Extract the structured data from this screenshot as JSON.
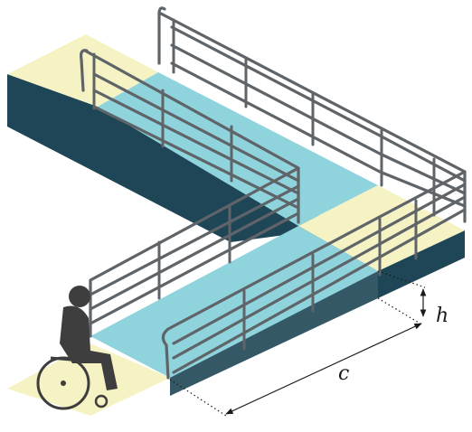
{
  "labels": {
    "c": "c",
    "h": "h"
  },
  "colors": {
    "ramp": "#8fd3dc",
    "landing": "#f5f3c4",
    "side": "#1f4657",
    "rail": "#5f6468",
    "person": "#3e3e3e"
  },
  "icons": [
    "wheelchair-user-icon"
  ]
}
